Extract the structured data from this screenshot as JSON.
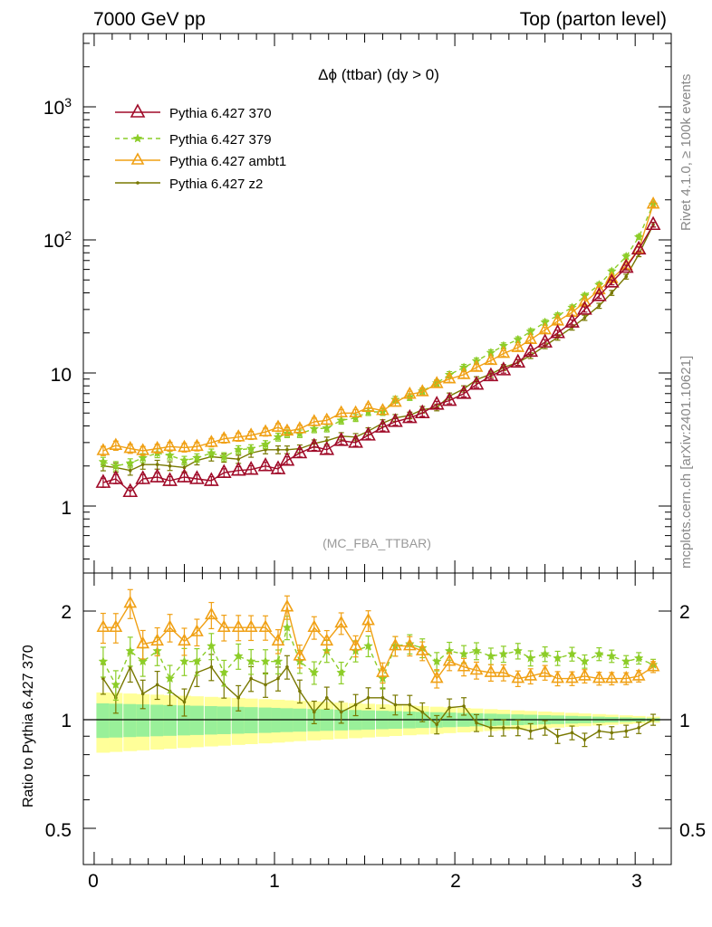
{
  "header": {
    "left_label": "7000 GeV pp",
    "right_label": "Top (parton level)"
  },
  "side_labels": {
    "rivet": "Rivet 4.1.0, ≥ 100k events",
    "mcplots": "mcplots.cern.ch [arXiv:2401.10621]"
  },
  "colors": {
    "370": "#a00a28",
    "379": "#8ccd28",
    "ambt1": "#f0a014",
    "z2": "#787800",
    "band_inner": "#99f099",
    "band_outer": "#ffff99"
  },
  "chart_data": [
    {
      "type": "line",
      "title": "Δϕ (ttbar) (dy > 0)",
      "watermark": "(MC_FBA_TTBAR)",
      "yscale": "log",
      "ylim": [
        0.32,
        3500
      ],
      "xlim": [
        -0.06,
        3.2
      ],
      "y_ticks": [
        "1",
        "10",
        "10^2",
        "10^3"
      ],
      "x": [
        0.05,
        0.12,
        0.2,
        0.27,
        0.35,
        0.42,
        0.5,
        0.57,
        0.65,
        0.72,
        0.8,
        0.87,
        0.95,
        1.02,
        1.07,
        1.14,
        1.22,
        1.29,
        1.37,
        1.45,
        1.52,
        1.6,
        1.67,
        1.75,
        1.82,
        1.9,
        1.97,
        2.05,
        2.12,
        2.2,
        2.27,
        2.35,
        2.42,
        2.5,
        2.57,
        2.65,
        2.72,
        2.8,
        2.87,
        2.95,
        3.02,
        3.1
      ],
      "series": [
        {
          "name": "Pythia 6.427 370",
          "key": "370",
          "values": [
            1.5,
            1.6,
            1.28,
            1.6,
            1.65,
            1.55,
            1.65,
            1.6,
            1.55,
            1.78,
            1.85,
            1.88,
            2.0,
            1.9,
            2.2,
            2.5,
            2.8,
            2.65,
            3.1,
            3.0,
            3.4,
            3.9,
            4.3,
            4.6,
            5.0,
            5.8,
            6.2,
            7.0,
            8.2,
            9.5,
            10.5,
            12.0,
            14.5,
            17.0,
            20.0,
            24.0,
            30.0,
            38.0,
            48.0,
            62.0,
            85.0,
            130.0
          ]
        },
        {
          "name": "Pythia 6.427 379",
          "key": "379",
          "values": [
            2.15,
            2.0,
            2.1,
            2.3,
            2.5,
            2.4,
            2.2,
            2.3,
            2.5,
            2.35,
            2.65,
            2.7,
            2.9,
            3.3,
            3.5,
            3.5,
            3.8,
            3.85,
            4.4,
            4.6,
            5.1,
            5.1,
            6.3,
            6.6,
            7.3,
            8.4,
            9.7,
            11.0,
            12.3,
            14.2,
            16.0,
            17.8,
            20.5,
            24.0,
            27.0,
            31.0,
            38.0,
            46.0,
            58.0,
            75.0,
            105.0,
            185.0
          ]
        },
        {
          "name": "Pythia 6.427 ambt1",
          "key": "ambt1",
          "values": [
            2.6,
            2.85,
            2.7,
            2.6,
            2.7,
            2.8,
            2.75,
            2.8,
            3.0,
            3.2,
            3.3,
            3.4,
            3.6,
            3.9,
            3.65,
            3.8,
            4.3,
            4.4,
            5.0,
            5.0,
            5.5,
            5.2,
            6.0,
            6.9,
            7.2,
            8.3,
            9.0,
            9.7,
            11.0,
            12.4,
            14.0,
            15.5,
            17.8,
            21.0,
            24.5,
            28.5,
            34.0,
            42.0,
            51.0,
            64.0,
            85.0,
            185.0
          ]
        },
        {
          "name": "Pythia 6.427 z2",
          "key": "z2",
          "values": [
            2.0,
            1.95,
            1.85,
            2.05,
            2.05,
            2.0,
            1.95,
            2.2,
            2.35,
            2.3,
            2.25,
            2.5,
            2.65,
            2.65,
            2.65,
            2.7,
            2.95,
            3.1,
            3.35,
            3.3,
            3.65,
            4.2,
            4.6,
            4.8,
            5.3,
            5.5,
            6.7,
            7.6,
            8.9,
            9.8,
            11.0,
            12.0,
            13.5,
            16.0,
            18.5,
            22.0,
            26.0,
            32.0,
            40.0,
            53.0,
            78.0,
            130.0
          ]
        }
      ]
    },
    {
      "type": "line",
      "ylabel": "Ratio to Pythia 6.427 370",
      "yscale": "log",
      "ylim": [
        0.42,
        2.45
      ],
      "xlim": [
        -0.06,
        3.2
      ],
      "y_ticks": [
        "0.5",
        "1",
        "2"
      ],
      "x_ticks": [
        "0",
        "1",
        "2",
        "3"
      ],
      "x": [
        0.05,
        0.12,
        0.2,
        0.27,
        0.35,
        0.42,
        0.5,
        0.57,
        0.65,
        0.72,
        0.8,
        0.87,
        0.95,
        1.02,
        1.07,
        1.14,
        1.22,
        1.29,
        1.37,
        1.45,
        1.52,
        1.6,
        1.67,
        1.75,
        1.82,
        1.9,
        1.97,
        2.05,
        2.12,
        2.2,
        2.27,
        2.35,
        2.42,
        2.5,
        2.57,
        2.65,
        2.72,
        2.8,
        2.87,
        2.95,
        3.02,
        3.1
      ],
      "series": [
        {
          "name": "Pythia 6.427 370",
          "key": "370",
          "values": [
            1,
            1,
            1,
            1,
            1,
            1,
            1,
            1,
            1,
            1,
            1,
            1,
            1,
            1,
            1,
            1,
            1,
            1,
            1,
            1,
            1,
            1,
            1,
            1,
            1,
            1,
            1,
            1,
            1,
            1,
            1,
            1,
            1,
            1,
            1,
            1,
            1,
            1,
            1,
            1,
            1,
            1
          ]
        },
        {
          "name": "Pythia 6.427 379",
          "key": "379",
          "values": [
            1.45,
            1.25,
            1.55,
            1.45,
            1.55,
            1.3,
            1.45,
            1.45,
            1.6,
            1.35,
            1.5,
            1.45,
            1.45,
            1.45,
            1.8,
            1.45,
            1.35,
            1.55,
            1.35,
            1.55,
            1.6,
            1.3,
            1.6,
            1.62,
            1.58,
            1.45,
            1.55,
            1.52,
            1.55,
            1.5,
            1.52,
            1.55,
            1.48,
            1.52,
            1.48,
            1.52,
            1.45,
            1.52,
            1.5,
            1.45,
            1.48,
            1.42
          ]
        },
        {
          "name": "Pythia 6.427 ambt1",
          "key": "ambt1",
          "values": [
            1.8,
            1.8,
            2.1,
            1.62,
            1.65,
            1.8,
            1.65,
            1.75,
            1.95,
            1.8,
            1.8,
            1.8,
            1.8,
            1.65,
            2.05,
            1.5,
            1.8,
            1.65,
            1.85,
            1.6,
            1.88,
            1.35,
            1.6,
            1.6,
            1.55,
            1.3,
            1.45,
            1.4,
            1.37,
            1.35,
            1.35,
            1.3,
            1.32,
            1.35,
            1.3,
            1.3,
            1.32,
            1.3,
            1.3,
            1.3,
            1.32,
            1.4
          ]
        },
        {
          "name": "Pythia 6.427 z2",
          "key": "z2",
          "values": [
            1.3,
            1.15,
            1.4,
            1.18,
            1.25,
            1.2,
            1.12,
            1.35,
            1.4,
            1.25,
            1.15,
            1.3,
            1.25,
            1.3,
            1.4,
            1.2,
            1.05,
            1.15,
            1.05,
            1.1,
            1.15,
            1.15,
            1.1,
            1.1,
            1.05,
            0.97,
            1.08,
            1.09,
            0.98,
            0.95,
            0.95,
            0.95,
            0.93,
            0.95,
            0.9,
            0.92,
            0.88,
            0.93,
            0.92,
            0.93,
            0.95,
            1.0
          ]
        }
      ]
    }
  ]
}
